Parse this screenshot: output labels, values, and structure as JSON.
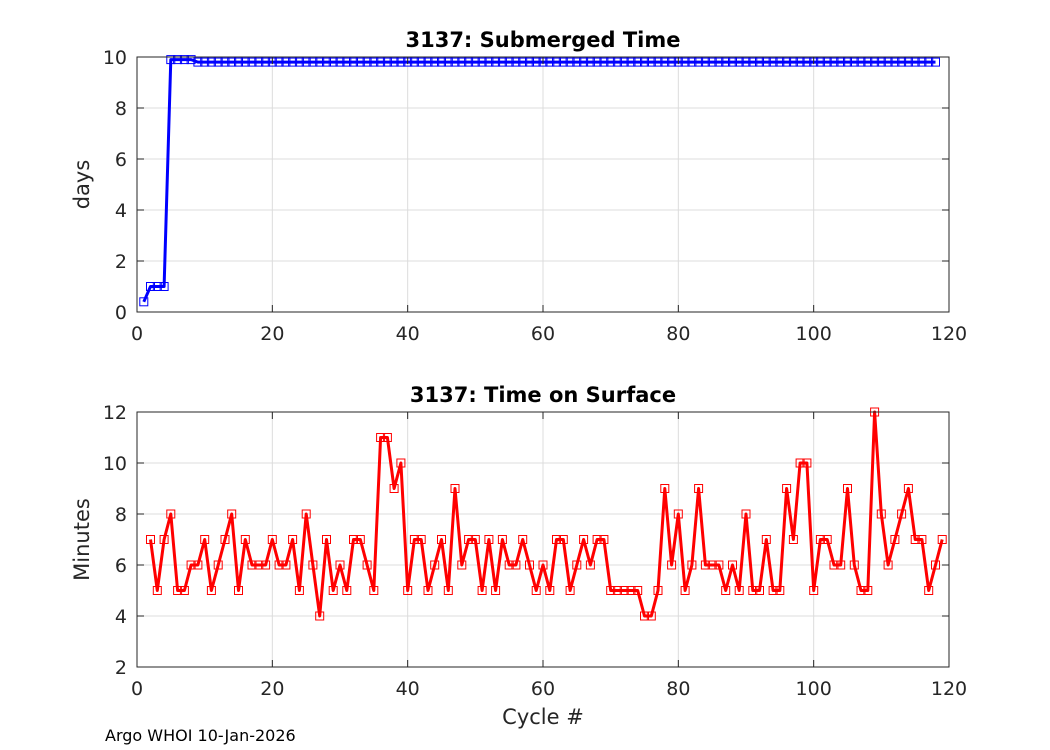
{
  "chart_data": [
    {
      "type": "line",
      "title": "3137: Submerged Time",
      "xlabel": "",
      "ylabel": "days",
      "xlim": [
        0,
        120
      ],
      "ylim": [
        0,
        10
      ],
      "xticks": [
        0,
        20,
        40,
        60,
        80,
        100,
        120
      ],
      "yticks": [
        0,
        2,
        4,
        6,
        8,
        10
      ],
      "grid": true,
      "marker": "square",
      "color": "#0000ff",
      "series": [
        {
          "x_start": 1,
          "x_end": 118,
          "values": [
            0.4,
            1.0,
            1.0,
            1.0,
            9.9,
            9.9,
            9.9,
            9.9,
            9.8,
            9.8,
            9.8,
            9.8,
            9.8,
            9.8,
            9.8,
            9.8,
            9.8,
            9.8,
            9.8,
            9.8,
            9.8,
            9.8,
            9.8,
            9.8,
            9.8,
            9.8,
            9.8,
            9.8,
            9.8,
            9.8,
            9.8,
            9.8,
            9.8,
            9.8,
            9.8,
            9.8,
            9.8,
            9.8,
            9.8,
            9.8,
            9.8,
            9.8,
            9.8,
            9.8,
            9.8,
            9.8,
            9.8,
            9.8,
            9.8,
            9.8,
            9.8,
            9.8,
            9.8,
            9.8,
            9.8,
            9.8,
            9.8,
            9.8,
            9.8,
            9.8,
            9.8,
            9.8,
            9.8,
            9.8,
            9.8,
            9.8,
            9.8,
            9.8,
            9.8,
            9.8,
            9.8,
            9.8,
            9.8,
            9.8,
            9.8,
            9.8,
            9.8,
            9.8,
            9.8,
            9.8,
            9.8,
            9.8,
            9.8,
            9.8,
            9.8,
            9.8,
            9.8,
            9.8,
            9.8,
            9.8,
            9.8,
            9.8,
            9.8,
            9.8,
            9.8,
            9.8,
            9.8,
            9.8,
            9.8,
            9.8,
            9.8,
            9.8,
            9.8,
            9.8,
            9.8,
            9.8,
            9.8,
            9.8,
            9.8,
            9.8,
            9.8,
            9.8,
            9.8,
            9.8,
            9.8,
            9.8,
            9.8,
            9.8
          ]
        }
      ]
    },
    {
      "type": "line",
      "title": "3137: Time on Surface",
      "xlabel": "Cycle #",
      "ylabel": "Minutes",
      "xlim": [
        0,
        120
      ],
      "ylim": [
        2,
        12
      ],
      "xticks": [
        0,
        20,
        40,
        60,
        80,
        100,
        120
      ],
      "yticks": [
        2,
        4,
        6,
        8,
        10,
        12
      ],
      "grid": true,
      "marker": "square",
      "color": "#ff0000",
      "series": [
        {
          "x_start": 2,
          "x_end": 118,
          "values": [
            7,
            5,
            7,
            8,
            5,
            5,
            6,
            6,
            7,
            5,
            6,
            7,
            8,
            5,
            7,
            6,
            6,
            6,
            7,
            6,
            6,
            7,
            5,
            8,
            6,
            4,
            7,
            5,
            6,
            5,
            7,
            7,
            6,
            5,
            11,
            11,
            9,
            10,
            5,
            7,
            7,
            5,
            6,
            7,
            5,
            9,
            6,
            7,
            7,
            5,
            7,
            5,
            7,
            6,
            6,
            7,
            6,
            5,
            6,
            5,
            7,
            7,
            5,
            6,
            7,
            6,
            7,
            7,
            5,
            5,
            5,
            5,
            5,
            4,
            4,
            5,
            9,
            6,
            8,
            5,
            6,
            9,
            6,
            6,
            6,
            5,
            6,
            5,
            8,
            5,
            5,
            7,
            5,
            5,
            9,
            7,
            10,
            10,
            5,
            7,
            7,
            6,
            6,
            9,
            6,
            5,
            5,
            12,
            8,
            6,
            7,
            8,
            9,
            7,
            7,
            5,
            6,
            7
          ]
        }
      ]
    }
  ],
  "footer": "Argo WHOI 10-Jan-2026"
}
